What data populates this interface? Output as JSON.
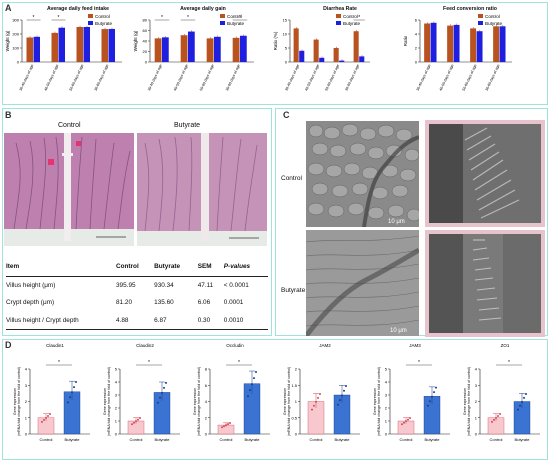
{
  "panel_labels": {
    "a": "A",
    "b": "B",
    "c": "C",
    "d": "D"
  },
  "colors": {
    "control": "#b8521f",
    "butyrate": "#1f1fe0",
    "err": "#c8181c",
    "micro_bg": "#e9c9d3",
    "sem_bg": "#8b8b8b"
  },
  "chart_data": [
    {
      "type": "bar",
      "title": "Average daily feed intake",
      "ylabel": "Weight (g)",
      "ylim": [
        0,
        300
      ],
      "yticks": [
        0,
        100,
        200,
        300
      ],
      "categories": [
        "30-40 days of age",
        "40-50 days of age",
        "50-60 days of age",
        "30-60 days of age"
      ],
      "series": [
        {
          "name": "Control",
          "values": [
            175,
            208,
            250,
            235
          ]
        },
        {
          "name": "Butyrate",
          "values": [
            180,
            245,
            250,
            236
          ]
        }
      ],
      "sig": [
        [
          "*",
          0
        ],
        [
          "*",
          1
        ]
      ],
      "legend": "top-right"
    },
    {
      "type": "bar",
      "title": "Average daily gain",
      "ylabel": "Weight (g)",
      "ylim": [
        0,
        80
      ],
      "yticks": [
        0,
        20,
        40,
        60,
        80
      ],
      "categories": [
        "30-40 days of age",
        "40-50 days of age",
        "50-60 days of age",
        "30-60 days of age"
      ],
      "series": [
        {
          "name": "Control",
          "values": [
            45,
            51,
            45,
            46
          ]
        },
        {
          "name": "Butyrate",
          "values": [
            47,
            58,
            48,
            50
          ]
        }
      ],
      "sig": [
        [
          "*",
          0
        ],
        [
          "*",
          1
        ],
        [
          "*",
          3
        ]
      ],
      "legend": "top-right"
    },
    {
      "type": "bar",
      "title": "Diarrhea Rate",
      "ylabel": "Ratio (%)",
      "ylim": [
        0,
        15
      ],
      "yticks": [
        0,
        5,
        10,
        15
      ],
      "categories": [
        "30-40 days of age",
        "40-50 days of age",
        "50-60 days of age",
        "30-60 days of age"
      ],
      "series": [
        {
          "name": "Control",
          "values": [
            12,
            8,
            5,
            11
          ]
        },
        {
          "name": "Butyrate",
          "values": [
            4,
            1.5,
            0.5,
            2
          ]
        }
      ],
      "sig": [
        [
          "*",
          3
        ]
      ],
      "legend": "top-right"
    },
    {
      "type": "bar",
      "title": "Feed conversion ratio",
      "ylabel": "Ratio",
      "ylim": [
        0,
        6
      ],
      "yticks": [
        0,
        2,
        4,
        6
      ],
      "categories": [
        "30-40 days of age",
        "40-50 days of age",
        "50-60 days of age",
        "30-60 days of age"
      ],
      "series": [
        {
          "name": "Control",
          "values": [
            5.5,
            5.2,
            4.8,
            5.1
          ]
        },
        {
          "name": "Butyrate",
          "values": [
            5.6,
            5.3,
            4.4,
            5.1
          ]
        }
      ],
      "sig": [],
      "legend": "top-right"
    },
    {
      "type": "bar",
      "title": "Claudin1",
      "ylabel": "Gene expression\n(mRNA fold change from the fold of control)",
      "ylim": [
        0,
        4
      ],
      "yticks": [
        0,
        1,
        2,
        3,
        4
      ],
      "categories": [
        "Control",
        "Butyrate"
      ],
      "values": [
        1.0,
        2.6
      ],
      "sig": "*"
    },
    {
      "type": "bar",
      "title": "Claudin2",
      "ylabel": "Gene expression\n(mRNA fold change from the fold of control)",
      "ylim": [
        0,
        5
      ],
      "yticks": [
        0,
        1,
        2,
        3,
        4,
        5
      ],
      "categories": [
        "Control",
        "Butyrate"
      ],
      "values": [
        1.0,
        3.2
      ],
      "sig": "*"
    },
    {
      "type": "bar",
      "title": "Occludin",
      "ylabel": "Gene expression\n(mRNA fold change from the fold of control)",
      "ylim": [
        0,
        8
      ],
      "yticks": [
        0,
        2,
        4,
        6,
        8
      ],
      "categories": [
        "Control",
        "Butyrate"
      ],
      "values": [
        1.1,
        6.2
      ],
      "sig": "*"
    },
    {
      "type": "bar",
      "title": "JAM2",
      "ylabel": "Gene expression\n(mRNA fold change from the fold of control)",
      "ylim": [
        0,
        2
      ],
      "yticks": [
        0.0,
        0.5,
        1.0,
        1.5,
        2.0
      ],
      "categories": [
        "Control",
        "Butyrate"
      ],
      "values": [
        1.0,
        1.2
      ],
      "sig": ""
    },
    {
      "type": "bar",
      "title": "JAM3",
      "ylabel": "Gene expression\n(mRNA fold change from the fold of control)",
      "ylim": [
        0,
        5
      ],
      "yticks": [
        0,
        1,
        2,
        3,
        4,
        5
      ],
      "categories": [
        "Control",
        "Butyrate"
      ],
      "values": [
        1.0,
        2.9
      ],
      "sig": "*"
    },
    {
      "type": "bar",
      "title": "ZO1",
      "ylabel": "Gene expression\n(mRNA fold change from the fold of control)",
      "ylim": [
        0,
        4
      ],
      "yticks": [
        0,
        1,
        2,
        3,
        4
      ],
      "categories": [
        "Control",
        "Butyrate"
      ],
      "values": [
        1.0,
        2.0
      ],
      "sig": "*"
    }
  ],
  "histology": {
    "control_label": "Control",
    "butyrate_label": "Butyrate"
  },
  "sem": {
    "control_label": "Control",
    "butyrate_label": "Butyrate",
    "scale1": "10 μm",
    "scale2": "10 μm"
  },
  "table": {
    "headers": [
      "Item",
      "Control",
      "Butyrate",
      "SEM",
      "P-values"
    ],
    "rows": [
      [
        "Villus height (μm)",
        "395.95",
        "930.34",
        "47.11",
        "< 0.0001"
      ],
      [
        "Crypt depth (μm)",
        "81.20",
        "135.60",
        "6.06",
        "0.0001"
      ],
      [
        "Villus height / Crypt depth",
        "4.88",
        "6.87",
        "0.30",
        "0.0010"
      ]
    ]
  }
}
